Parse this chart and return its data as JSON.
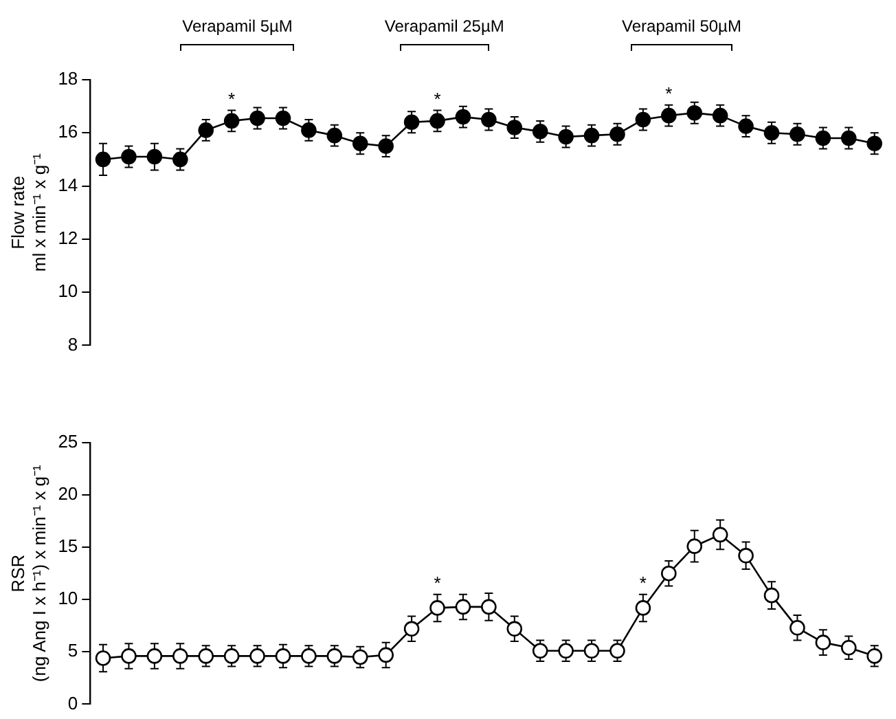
{
  "chart_data": [
    {
      "type": "line",
      "ylabel": "Flow rate\nml x min⁻¹ x g⁻¹",
      "categories": [
        null,
        null,
        null,
        null,
        null,
        null,
        null,
        null,
        null,
        null,
        null,
        null,
        null,
        null,
        null,
        null,
        null,
        null,
        null,
        null,
        null,
        null,
        null,
        null,
        null,
        null,
        null,
        null,
        null,
        null,
        null
      ],
      "ylim": [
        8,
        18
      ],
      "yticks": [
        8,
        10,
        12,
        14,
        16,
        18
      ],
      "grid": false,
      "legend": false,
      "tick_labels": "y",
      "marker": "circle",
      "line_style": "solid",
      "annotations": [
        "Verapamil 5µM",
        "Verapamil 25µM",
        "Verapamil 50µM"
      ],
      "series": [
        {
          "color": "#000000",
          "values": [
            15.0,
            15.1,
            15.1,
            15.0,
            16.1,
            16.45,
            16.55,
            16.55,
            16.1,
            15.9,
            15.6,
            15.5,
            16.4,
            16.45,
            16.6,
            16.5,
            16.2,
            16.05,
            15.85,
            15.9,
            15.95,
            16.5,
            16.65,
            16.75,
            16.65,
            16.25,
            16.0,
            15.95,
            15.8,
            15.8,
            15.6
          ],
          "errors": [
            0.6,
            0.4,
            0.5,
            0.4,
            0.4,
            0.4,
            0.4,
            0.4,
            0.4,
            0.4,
            0.4,
            0.4,
            0.4,
            0.4,
            0.4,
            0.4,
            0.4,
            0.4,
            0.4,
            0.4,
            0.4,
            0.4,
            0.4,
            0.4,
            0.4,
            0.4,
            0.4,
            0.4,
            0.4,
            0.4,
            0.4
          ],
          "value_labels": [
            null,
            null,
            null,
            null,
            null,
            "*",
            null,
            null,
            null,
            null,
            null,
            null,
            null,
            "*",
            null,
            null,
            null,
            null,
            null,
            null,
            null,
            null,
            "*",
            null,
            null,
            null,
            null,
            null,
            null,
            null,
            null
          ]
        }
      ]
    },
    {
      "type": "line",
      "ylabel": "RSR\n(ng Ang I x h⁻¹) x min⁻¹ x g⁻¹",
      "categories": [
        null,
        null,
        null,
        null,
        null,
        null,
        null,
        null,
        null,
        null,
        null,
        null,
        null,
        null,
        null,
        null,
        null,
        null,
        null,
        null,
        null,
        null,
        null,
        null,
        null,
        null,
        null,
        null,
        null,
        null,
        null
      ],
      "ylim": [
        0,
        25
      ],
      "yticks": [
        0,
        5,
        10,
        15,
        20,
        25
      ],
      "grid": false,
      "legend": false,
      "tick_labels": "y",
      "marker": "circle",
      "line_style": "solid",
      "series": [
        {
          "color": "#000000",
          "values": [
            4.4,
            4.6,
            4.6,
            4.6,
            4.6,
            4.6,
            4.6,
            4.6,
            4.6,
            4.6,
            4.5,
            4.7,
            7.2,
            9.2,
            9.3,
            9.3,
            7.2,
            5.1,
            5.1,
            5.1,
            5.1,
            9.2,
            12.5,
            15.1,
            16.2,
            14.2,
            10.4,
            7.3,
            5.9,
            5.4,
            4.6
          ],
          "errors": [
            1.3,
            1.2,
            1.2,
            1.2,
            1.0,
            1.0,
            1.0,
            1.1,
            1.0,
            1.0,
            1.0,
            1.2,
            1.2,
            1.3,
            1.2,
            1.3,
            1.2,
            1.0,
            1.0,
            1.0,
            1.0,
            1.3,
            1.2,
            1.5,
            1.4,
            1.3,
            1.3,
            1.2,
            1.2,
            1.1,
            1.0
          ],
          "value_labels": [
            null,
            null,
            null,
            null,
            null,
            null,
            null,
            null,
            null,
            null,
            null,
            null,
            null,
            "*",
            null,
            null,
            null,
            null,
            null,
            null,
            null,
            "*",
            null,
            null,
            null,
            null,
            null,
            null,
            null,
            null,
            null
          ]
        }
      ]
    }
  ]
}
